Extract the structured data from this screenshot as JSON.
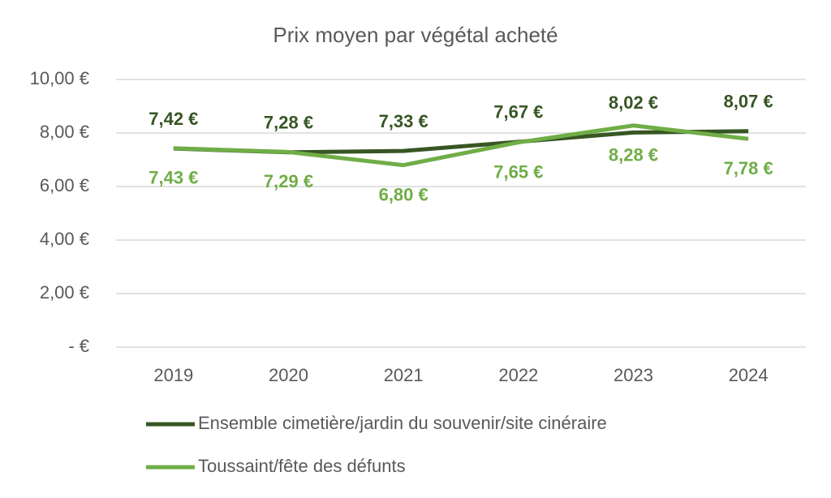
{
  "chart_data": {
    "type": "line",
    "title": "Prix moyen par végétal acheté",
    "categories": [
      "2019",
      "2020",
      "2021",
      "2022",
      "2023",
      "2024"
    ],
    "series": [
      {
        "name": "Ensemble cimetière/jardin du souvenir/site cinéraire",
        "color": "#375623",
        "values": [
          7.42,
          7.28,
          7.33,
          7.67,
          8.02,
          8.07
        ],
        "value_labels": [
          "7,42 €",
          "7,28 €",
          "7,33 €",
          "7,67 €",
          "8,02 €",
          "8,07 €"
        ]
      },
      {
        "name": "Toussaint/fête des défunts",
        "color": "#70ad47",
        "values": [
          7.43,
          7.29,
          6.8,
          7.65,
          8.28,
          7.78
        ],
        "value_labels": [
          "7,43 €",
          "7,29 €",
          "6,80 €",
          "7,65 €",
          "8,28 €",
          "7,78 €"
        ]
      }
    ],
    "ylim": [
      0,
      10
    ],
    "yticks": [
      {
        "value": 0,
        "label": "-   €"
      },
      {
        "value": 2,
        "label": "2,00 €"
      },
      {
        "value": 4,
        "label": "4,00 €"
      },
      {
        "value": 6,
        "label": "6,00 €"
      },
      {
        "value": 8,
        "label": "8,00 €"
      },
      {
        "value": 10,
        "label": "10,00 €"
      }
    ],
    "grid": true,
    "legend": "bottom"
  }
}
